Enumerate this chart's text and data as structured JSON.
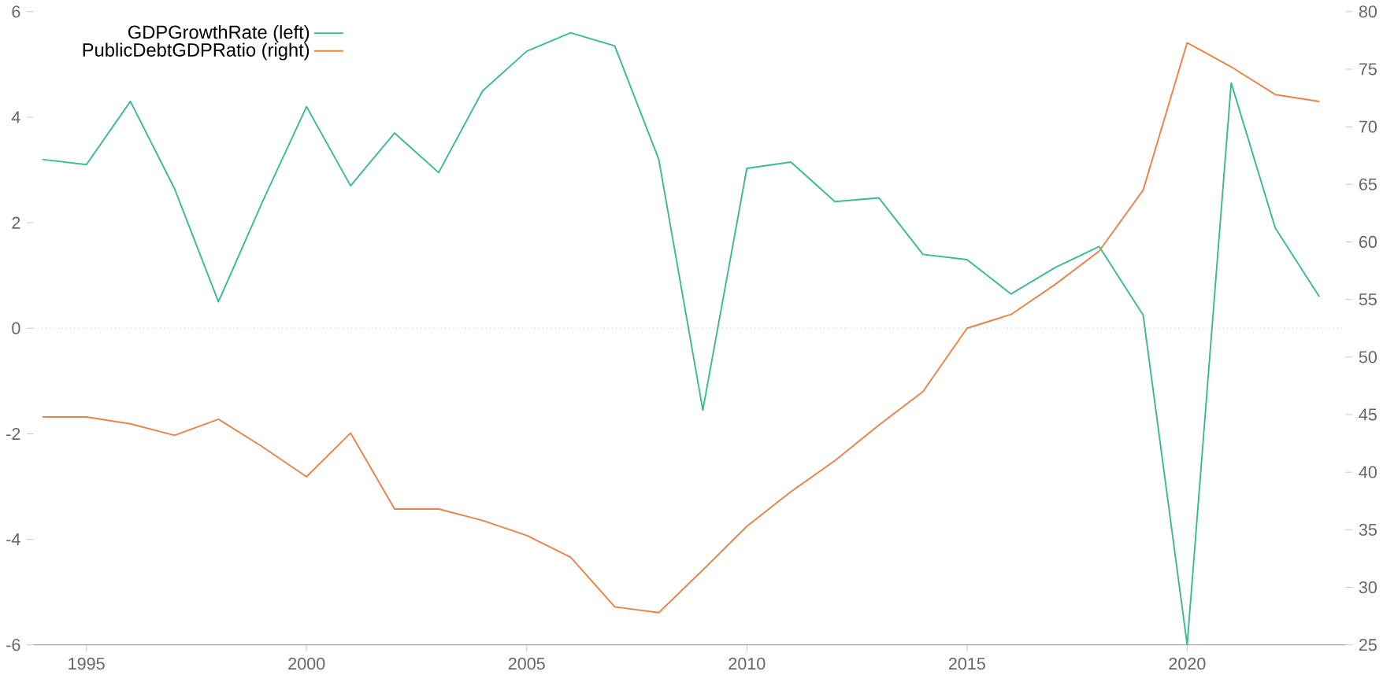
{
  "chart_data": {
    "type": "line",
    "x": [
      1994,
      1995,
      1996,
      1997,
      1998,
      1999,
      2000,
      2001,
      2002,
      2003,
      2004,
      2005,
      2006,
      2007,
      2008,
      2009,
      2010,
      2011,
      2012,
      2013,
      2014,
      2015,
      2016,
      2017,
      2018,
      2019,
      2020,
      2021,
      2022,
      2023
    ],
    "series": [
      {
        "name": "GDPGrowthRate (left)",
        "color": "#3dba94",
        "values": [
          3.2,
          3.1,
          4.3,
          2.65,
          0.5,
          2.4,
          4.2,
          2.7,
          3.7,
          2.95,
          4.5,
          5.25,
          5.6,
          5.35,
          3.2,
          -1.55,
          3.03,
          3.15,
          2.4,
          2.47,
          1.4,
          1.3,
          0.65,
          1.15,
          1.55,
          0.25,
          -6,
          4.65,
          1.9,
          0.6
        ]
      },
      {
        "name": "PublicDebtGDPRatio (right)",
        "color": "#e8844a",
        "axis": "y2",
        "values": [
          44.8,
          44.8,
          44.2,
          43.2,
          44.6,
          42.2,
          39.6,
          43.4,
          36.8,
          36.8,
          35.8,
          34.5,
          32.6,
          28.3,
          27.8,
          31.5,
          35.3,
          38.3,
          41,
          44.1,
          47,
          52.5,
          53.7,
          56.3,
          59.2,
          64.5,
          77.3,
          75.2,
          72.8,
          72.2
        ]
      }
    ],
    "xlim": [
      1993.8,
      2023.6
    ],
    "xticks": [
      1995,
      2000,
      2005,
      2010,
      2015,
      2020
    ],
    "ylim": [
      -6,
      6
    ],
    "yticks": [
      -6,
      -4,
      -2,
      0,
      2,
      4,
      6
    ],
    "y2lim": [
      25,
      80
    ],
    "y2ticks": [
      25,
      30,
      35,
      40,
      45,
      50,
      55,
      60,
      65,
      70,
      75,
      80
    ],
    "ref_lines": [
      {
        "axis": "y",
        "value": 0,
        "color": "#aaaaaa",
        "line_style": "dotted"
      }
    ],
    "legend": "top left",
    "grid": false,
    "marker": "none",
    "line_style": "solid"
  }
}
